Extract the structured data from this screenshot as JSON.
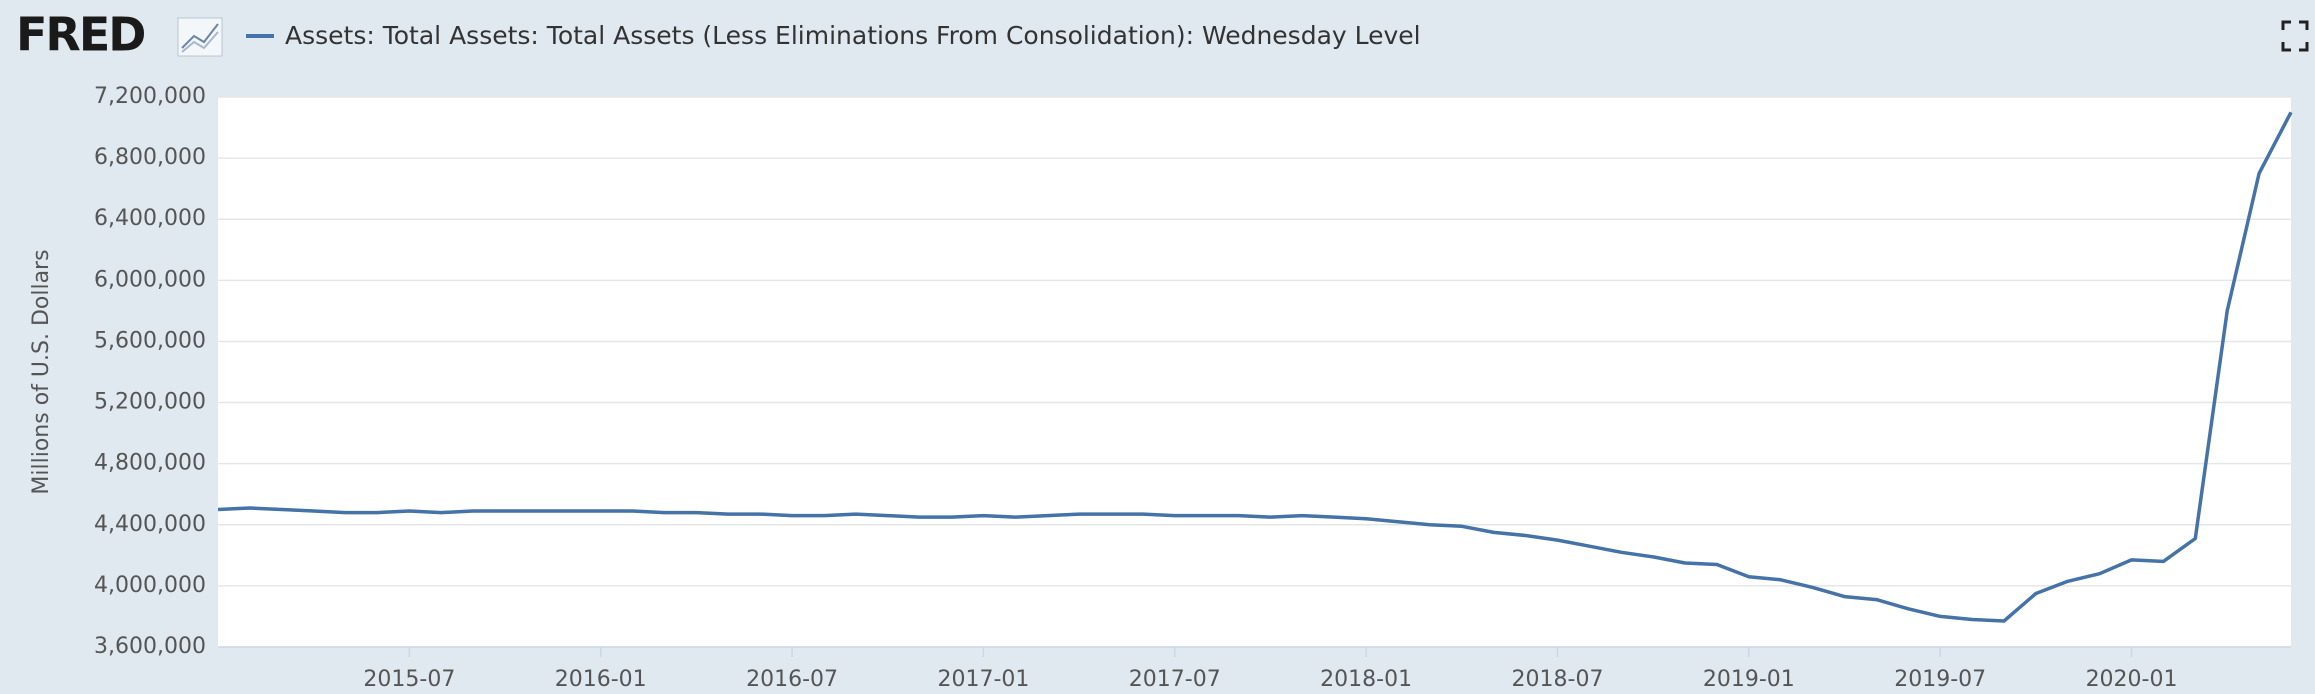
{
  "logo": "FRED",
  "chart_data": {
    "type": "line",
    "title": "Assets: Total Assets: Total Assets (Less Eliminations From Consolidation): Wednesday Level",
    "y_label": "Millions of U.S. Dollars",
    "x": [
      "2015-01",
      "2015-02",
      "2015-03",
      "2015-04",
      "2015-05",
      "2015-06",
      "2015-07",
      "2015-08",
      "2015-09",
      "2015-10",
      "2015-11",
      "2015-12",
      "2016-01",
      "2016-02",
      "2016-03",
      "2016-04",
      "2016-05",
      "2016-06",
      "2016-07",
      "2016-08",
      "2016-09",
      "2016-10",
      "2016-11",
      "2016-12",
      "2017-01",
      "2017-02",
      "2017-03",
      "2017-04",
      "2017-05",
      "2017-06",
      "2017-07",
      "2017-08",
      "2017-09",
      "2017-10",
      "2017-11",
      "2017-12",
      "2018-01",
      "2018-02",
      "2018-03",
      "2018-04",
      "2018-05",
      "2018-06",
      "2018-07",
      "2018-08",
      "2018-09",
      "2018-10",
      "2018-11",
      "2018-12",
      "2019-01",
      "2019-02",
      "2019-03",
      "2019-04",
      "2019-05",
      "2019-06",
      "2019-07",
      "2019-08",
      "2019-09",
      "2019-10",
      "2019-11",
      "2019-12",
      "2020-01",
      "2020-02",
      "2020-03",
      "2020-04",
      "2020-05",
      "2020-06"
    ],
    "series": [
      {
        "name": "Assets: Total Assets: Total Assets (Less Eliminations From Consolidation): Wednesday Level",
        "color": "#4572a7",
        "values": [
          4500000,
          4510000,
          4500000,
          4490000,
          4480000,
          4480000,
          4490000,
          4480000,
          4490000,
          4490000,
          4490000,
          4490000,
          4490000,
          4490000,
          4480000,
          4480000,
          4470000,
          4470000,
          4460000,
          4460000,
          4470000,
          4460000,
          4450000,
          4450000,
          4460000,
          4450000,
          4460000,
          4470000,
          4470000,
          4470000,
          4460000,
          4460000,
          4460000,
          4450000,
          4460000,
          4450000,
          4440000,
          4420000,
          4400000,
          4390000,
          4350000,
          4330000,
          4300000,
          4260000,
          4220000,
          4190000,
          4150000,
          4140000,
          4060000,
          4040000,
          3990000,
          3930000,
          3910000,
          3850000,
          3800000,
          3780000,
          3770000,
          3950000,
          4030000,
          4080000,
          4170000,
          4160000,
          4310000,
          5800000,
          6700000,
          7100000
        ]
      }
    ],
    "xlim": [
      "2015-01",
      "2020-06"
    ],
    "xticks": [
      "2015-07",
      "2016-01",
      "2016-07",
      "2017-01",
      "2017-07",
      "2018-01",
      "2018-07",
      "2019-01",
      "2019-07",
      "2020-01"
    ],
    "ylim": [
      3600000,
      7200000
    ],
    "yticks": [
      {
        "value": 3600000,
        "label": "3,600,000"
      },
      {
        "value": 4000000,
        "label": "4,000,000"
      },
      {
        "value": 4400000,
        "label": "4,400,000"
      },
      {
        "value": 4800000,
        "label": "4,800,000"
      },
      {
        "value": 5200000,
        "label": "5,200,000"
      },
      {
        "value": 5600000,
        "label": "5,600,000"
      },
      {
        "value": 6000000,
        "label": "6,000,000"
      },
      {
        "value": 6400000,
        "label": "6,400,000"
      },
      {
        "value": 6800000,
        "label": "6,800,000"
      },
      {
        "value": 7200000,
        "label": "7,200,000"
      }
    ],
    "grid": true
  }
}
